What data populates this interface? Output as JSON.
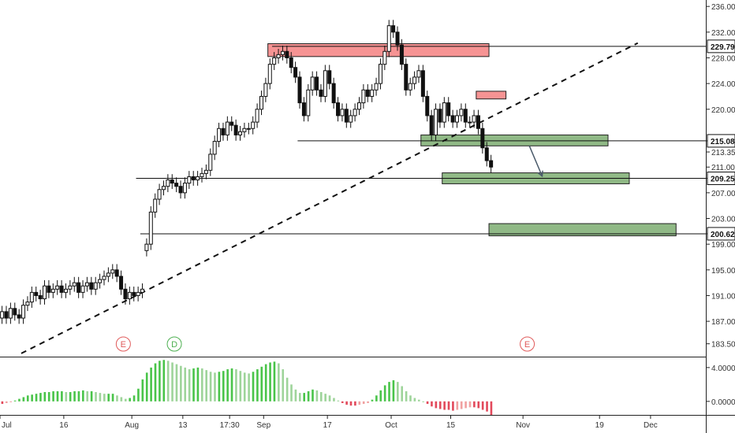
{
  "chart_data": {
    "type": "candlestick",
    "price_axis": {
      "ticks": [
        "236.00",
        "232.00",
        "228.00",
        "224.00",
        "220.00",
        "215.08",
        "213.35",
        "211.00",
        "209.25",
        "207.00",
        "203.00",
        "200.62",
        "199.00",
        "195.00",
        "191.00",
        "187.00",
        "183.50"
      ],
      "highlighted": [
        "229.79",
        "215.08",
        "209.25",
        "200.62"
      ],
      "ylim": [
        181.5,
        237
      ]
    },
    "time_axis": {
      "ticks": [
        {
          "label": "Jul",
          "day": 0
        },
        {
          "label": "16",
          "day": 15
        },
        {
          "label": "Aug",
          "day": 31
        },
        {
          "label": "13",
          "day": 43
        },
        {
          "label": "17:30",
          "day": 54
        },
        {
          "label": "Sep",
          "day": 62
        },
        {
          "label": "17",
          "day": 77
        },
        {
          "label": "Oct",
          "day": 92
        },
        {
          "label": "15",
          "day": 106
        },
        {
          "label": "Nov",
          "day": 123
        },
        {
          "label": "19",
          "day": 141
        },
        {
          "label": "Dec",
          "day": 153
        }
      ],
      "xlim": [
        0,
        166
      ]
    },
    "levels": [
      {
        "price": 229.79,
        "from_day": 64,
        "to_day": 166
      },
      {
        "price": 215.08,
        "from_day": 70,
        "to_day": 166
      },
      {
        "price": 209.25,
        "from_day": 32,
        "to_day": 166
      },
      {
        "price": 200.62,
        "from_day": 33,
        "to_day": 166
      }
    ],
    "zones": [
      {
        "kind": "supply",
        "from_day": 63,
        "to_day": 115,
        "low": 228.2,
        "high": 230.2
      },
      {
        "kind": "supply",
        "from_day": 112,
        "to_day": 119,
        "low": 221.6,
        "high": 222.8
      },
      {
        "kind": "demand",
        "from_day": 99,
        "to_day": 143,
        "low": 214.3,
        "high": 216.0
      },
      {
        "kind": "demand",
        "from_day": 104,
        "to_day": 148,
        "low": 208.4,
        "high": 210.1
      },
      {
        "kind": "demand",
        "from_day": 115,
        "to_day": 159,
        "low": 200.3,
        "high": 202.2
      }
    ],
    "trendline": {
      "from": [
        5,
        182
      ],
      "to": [
        150,
        230.3
      ]
    },
    "arrow": {
      "from": [
        124.5,
        214.3
      ],
      "to": [
        127.5,
        209.6
      ]
    },
    "events": [
      {
        "label": "E",
        "day": 29,
        "color": "#e05a5a"
      },
      {
        "label": "D",
        "day": 41,
        "color": "#4caf50"
      },
      {
        "label": "E",
        "day": 124,
        "color": "#e05a5a"
      }
    ],
    "candles": {
      "start_day": 0,
      "step_days": 1,
      "closes": [
        188.5,
        187.5,
        189,
        188,
        187.5,
        189.5,
        190,
        191.5,
        191,
        190.5,
        192.5,
        191.5,
        192,
        192.5,
        191.5,
        192,
        192.5,
        193,
        191.5,
        192.5,
        193,
        192,
        193,
        193.5,
        194,
        194.5,
        195,
        194,
        192,
        190.5,
        191.5,
        191,
        191.5,
        192,
        199,
        204,
        206,
        207.5,
        208,
        209,
        208.5,
        208,
        207,
        208.5,
        209.5,
        209,
        209.5,
        210,
        210.5,
        213,
        215,
        217,
        216,
        218,
        217.5,
        216,
        216.5,
        217,
        217,
        218,
        220,
        222,
        224,
        227,
        228,
        228.5,
        229,
        228,
        226.5,
        225,
        221,
        219,
        223,
        225,
        223,
        222,
        226,
        224,
        221,
        219,
        220,
        218,
        219,
        220,
        221,
        223,
        222,
        223,
        224,
        227,
        229,
        233,
        232,
        230,
        227,
        223,
        224,
        225,
        226,
        222,
        219,
        216,
        220,
        218,
        221,
        219,
        218,
        219,
        220,
        218,
        218,
        219,
        217,
        214,
        212,
        211
      ],
      "opens": [
        187.5,
        188.5,
        187.5,
        189,
        188,
        187.5,
        189.5,
        190,
        191.5,
        191,
        190.5,
        192.5,
        191.5,
        192,
        192.5,
        191.5,
        192,
        192.5,
        193,
        191.5,
        192.5,
        193,
        192,
        193,
        193.5,
        194,
        194.5,
        195,
        194,
        192,
        190.5,
        191.5,
        191,
        191.5,
        198,
        199,
        204,
        206,
        207.5,
        208,
        209,
        208.5,
        208,
        207,
        208.5,
        209.5,
        209,
        209.5,
        210,
        210.5,
        213,
        215,
        217,
        216,
        218,
        217.5,
        216,
        216.5,
        217,
        217,
        218,
        220,
        222,
        224,
        227,
        228,
        228.5,
        229,
        228,
        226.5,
        225,
        221,
        219,
        223,
        225,
        223,
        222,
        226,
        224,
        221,
        219,
        220,
        218,
        219,
        220,
        221,
        223,
        222,
        223,
        224,
        227,
        229,
        233,
        232,
        230,
        227,
        223,
        224,
        225,
        226,
        222,
        219,
        216,
        220,
        218,
        221,
        219,
        218,
        219,
        220,
        218,
        218,
        219,
        217,
        214,
        212
      ]
    },
    "oscillator": {
      "axis_ticks": [
        "4.0000",
        "0.0000"
      ],
      "ylim": [
        -1.6,
        5.2
      ],
      "values": [
        -0.3,
        -0.2,
        -0.1,
        0.1,
        0.3,
        0.5,
        0.7,
        0.8,
        0.9,
        1.0,
        1.1,
        1.1,
        1.2,
        1.2,
        1.2,
        1.1,
        1.1,
        1.2,
        1.2,
        1.3,
        1.2,
        1.2,
        1.1,
        1.0,
        0.9,
        0.9,
        0.9,
        0.7,
        0.5,
        0.3,
        0.4,
        0.7,
        1.5,
        2.6,
        3.4,
        4.0,
        4.5,
        4.8,
        4.9,
        4.8,
        4.6,
        4.4,
        4.2,
        4.0,
        3.8,
        3.9,
        4.0,
        3.9,
        3.7,
        3.5,
        3.4,
        3.5,
        3.6,
        3.8,
        3.9,
        3.8,
        3.6,
        3.4,
        3.3,
        3.5,
        3.8,
        4.1,
        4.4,
        4.6,
        4.7,
        4.5,
        3.8,
        2.8,
        2.0,
        1.4,
        1.0,
        1.0,
        1.2,
        1.4,
        1.3,
        1.1,
        0.9,
        0.7,
        0.4,
        0.1,
        -0.2,
        -0.4,
        -0.5,
        -0.5,
        -0.4,
        -0.3,
        -0.2,
        0.2,
        0.7,
        1.3,
        1.9,
        2.3,
        2.5,
        2.3,
        1.8,
        1.2,
        0.7,
        0.4,
        0.2,
        0.0,
        -0.3,
        -0.6,
        -0.8,
        -0.9,
        -1.0,
        -1.0,
        -1.1,
        -1.0,
        -0.9,
        -0.8,
        -0.7,
        -0.7,
        -0.8,
        -1.0,
        -1.2,
        -1.6
      ]
    }
  }
}
